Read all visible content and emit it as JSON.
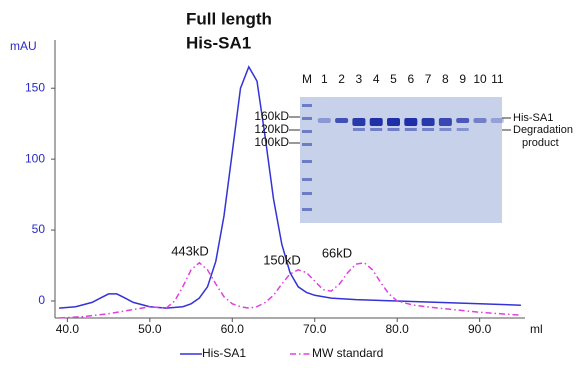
{
  "chart_data": {
    "type": "line",
    "title": [
      "Full length",
      "His-SA1"
    ],
    "ylabel": "mAU",
    "xlabel": "ml",
    "xlim": [
      38.5,
      95.5
    ],
    "ylim": [
      -12,
      184
    ],
    "xticks": [
      {
        "value": 40,
        "label": "40.0"
      },
      {
        "value": 50,
        "label": "50.0"
      },
      {
        "value": 60,
        "label": "60.0"
      },
      {
        "value": 70,
        "label": "70.0"
      },
      {
        "value": 80,
        "label": "80.0"
      },
      {
        "value": 90,
        "label": "90.0"
      }
    ],
    "yticks": [
      0,
      50,
      100,
      150
    ],
    "grid": false,
    "legend": "bottom",
    "series": [
      {
        "name": "His-SA1",
        "color": "#3333d6",
        "dash": "solid",
        "x": [
          39,
          41,
          43,
          44,
          45,
          46,
          47,
          48,
          50,
          52,
          54,
          55,
          56,
          57,
          58,
          59,
          60,
          61,
          62,
          63,
          64,
          65,
          66,
          67,
          68,
          69,
          70,
          72,
          75,
          80,
          85,
          90,
          95
        ],
        "values": [
          -5,
          -4,
          -1,
          2,
          5,
          5,
          2,
          -1,
          -4,
          -5,
          -4,
          -2,
          2,
          10,
          28,
          60,
          105,
          150,
          165,
          155,
          115,
          72,
          40,
          20,
          10,
          6,
          4,
          2,
          1,
          0,
          -1,
          -2,
          -3
        ]
      },
      {
        "name": "MW standard",
        "color": "#e040e0",
        "dash": "dashdot",
        "x": [
          39,
          42,
          45,
          48,
          50,
          52,
          53,
          54,
          55,
          56,
          57,
          58,
          59,
          60,
          61,
          62,
          63,
          64,
          65,
          66,
          67,
          68,
          69,
          70,
          71,
          72,
          73,
          74,
          75,
          76,
          77,
          78,
          79,
          80,
          82,
          85,
          90,
          95
        ],
        "values": [
          -12,
          -11,
          -9,
          -6,
          -4,
          -5,
          0,
          10,
          22,
          27,
          22,
          12,
          3,
          -2,
          -4,
          -5,
          -4,
          -1,
          4,
          12,
          19,
          22,
          20,
          14,
          8,
          7,
          12,
          20,
          26,
          27,
          22,
          13,
          5,
          0,
          -3,
          -5,
          -8,
          -10
        ]
      }
    ],
    "annotations": [
      "443kD",
      "150kD",
      "66kD"
    ],
    "inset": {
      "lanes": [
        "M",
        "1",
        "2",
        "3",
        "4",
        "5",
        "6",
        "7",
        "8",
        "9",
        "10",
        "11"
      ],
      "markers": [
        "160kD",
        "120kD",
        "100kD"
      ],
      "band_labels": [
        [
          "His-SA1"
        ],
        [
          "Degradation",
          "product"
        ]
      ]
    }
  }
}
